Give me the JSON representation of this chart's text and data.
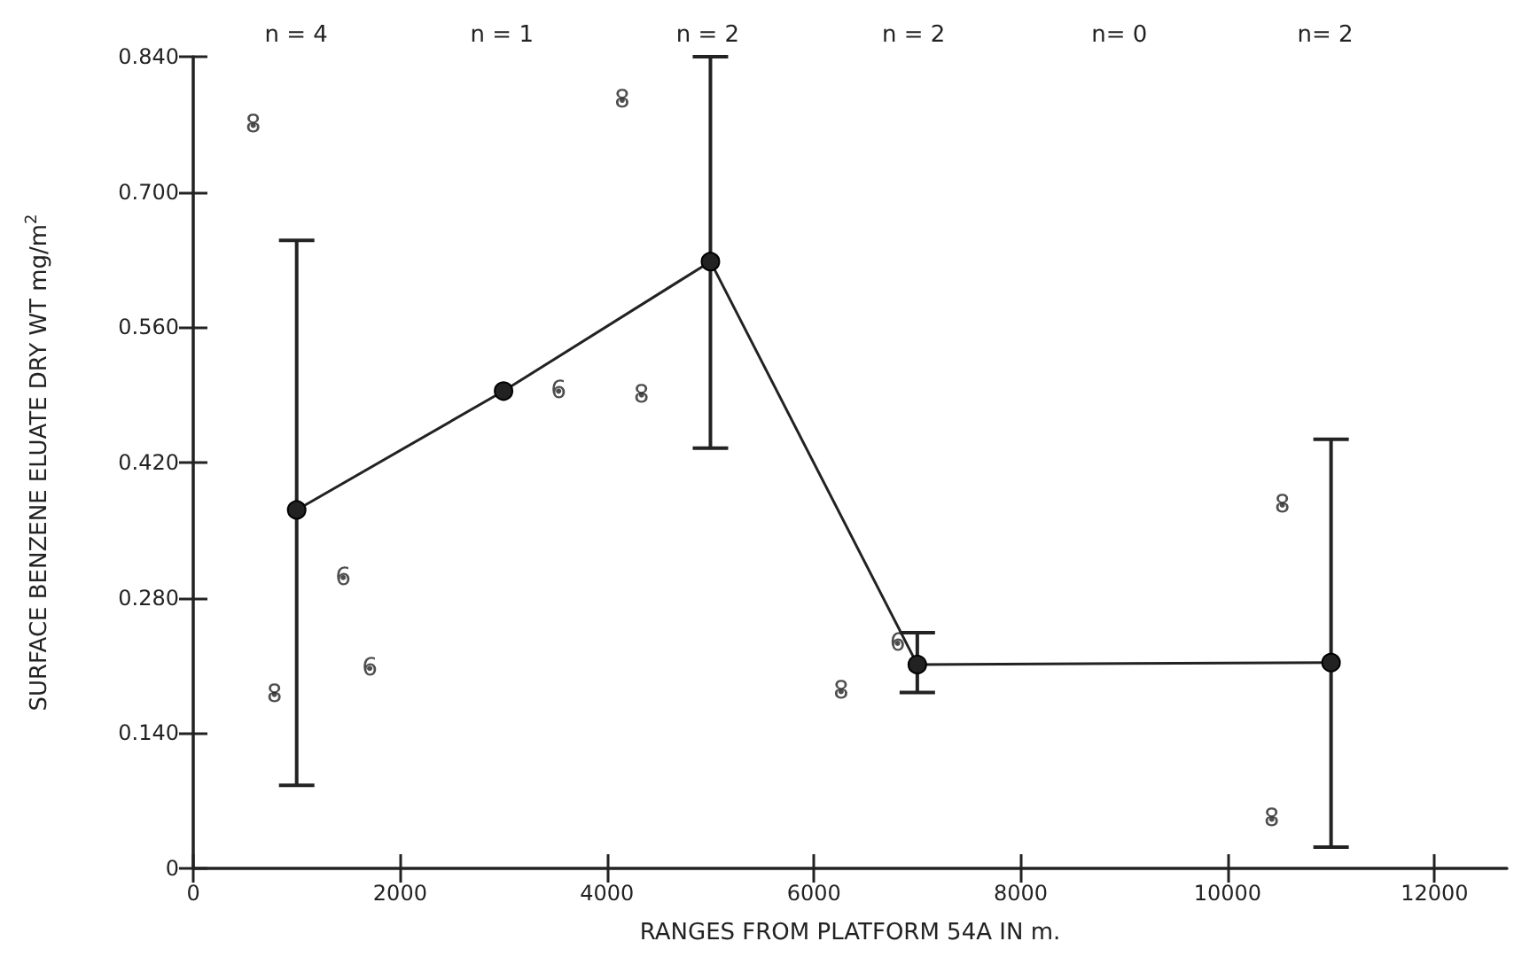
{
  "chart_data": {
    "type": "line",
    "xlabel": "RANGES FROM PLATFORM 54A IN m.",
    "ylabel": "SURFACE BENZENE ELUATE DRY WT mg/m$^{2}$",
    "x": [
      1000,
      3000,
      5000,
      7000,
      11000
    ],
    "series": [
      {
        "color": "#222222",
        "marker": "circle",
        "values": [
          0.371,
          0.494,
          0.628,
          0.211,
          0.213
        ],
        "errors": [
          [
            0.086,
            0.65
          ],
          null,
          [
            0.435,
            0.84
          ],
          [
            0.182,
            0.244
          ],
          [
            0.022,
            0.444
          ]
        ]
      },
      {
        "type": "scatter",
        "name": "8",
        "color": "#222222",
        "x": [
          580,
          785,
          4334,
          4147,
          6263,
          10529,
          10427
        ],
        "values": [
          0.769,
          0.18,
          0.49,
          0.795,
          0.183,
          0.376,
          0.051
        ]
      },
      {
        "type": "scatter",
        "name": "6",
        "color": "#222222",
        "x": [
          1450,
          1706,
          3532,
          6809
        ],
        "values": [
          0.301,
          0.207,
          0.494,
          0.233
        ]
      }
    ],
    "line_style": "solid",
    "grid": false,
    "legend": false,
    "xlim": [
      0,
      12700
    ],
    "xticks": [
      0,
      2000,
      4000,
      6000,
      8000,
      10000,
      12000
    ],
    "ylim": [
      0,
      0.84
    ],
    "yticks": [
      0,
      {
        "value": 0.14,
        "label": "0.140"
      },
      {
        "value": 0.28,
        "label": "0.280"
      },
      {
        "value": 0.42,
        "label": "0.420"
      },
      {
        "value": 0.56,
        "label": "0.560"
      },
      {
        "value": 0.7,
        "label": "0.700"
      },
      {
        "value": 0.84,
        "label": "0.840"
      }
    ],
    "annotations": [
      "n = 4",
      "n = 1",
      "n = 2",
      "n = 2",
      "n= 0",
      "n= 2"
    ]
  }
}
